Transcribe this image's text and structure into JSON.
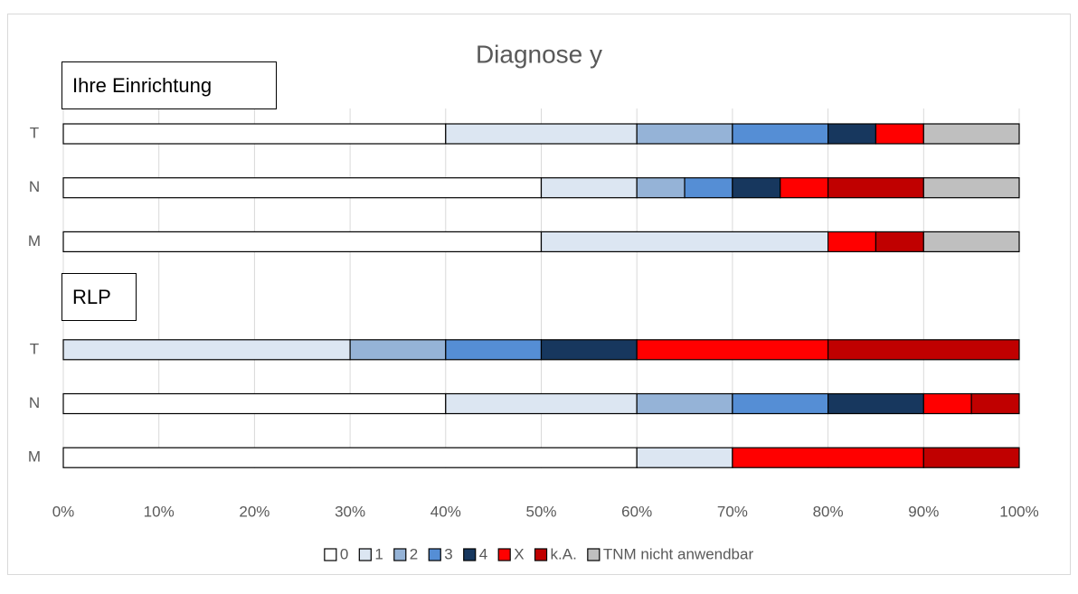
{
  "chart_data": {
    "type": "stacked_bar_horizontal",
    "title": "Diagnose y",
    "annotations": [
      "Ihre Einrichtung",
      "RLP"
    ],
    "categories": [
      "T",
      "N",
      "M",
      null,
      "T",
      "N",
      "M"
    ],
    "series": [
      {
        "name": "0",
        "color": "#ffffff",
        "values": [
          40,
          50,
          50,
          null,
          0,
          40,
          60
        ]
      },
      {
        "name": "1",
        "color": "#dce6f2",
        "values": [
          20,
          10,
          30,
          null,
          30,
          20,
          10
        ]
      },
      {
        "name": "2",
        "color": "#95b3d7",
        "values": [
          10,
          5,
          0,
          null,
          10,
          10,
          0
        ]
      },
      {
        "name": "3",
        "color": "#558ed5",
        "values": [
          10,
          5,
          0,
          null,
          10,
          10,
          0
        ]
      },
      {
        "name": "4",
        "color": "#17375e",
        "values": [
          5,
          5,
          0,
          null,
          10,
          10,
          0
        ]
      },
      {
        "name": "X",
        "color": "#ff0000",
        "values": [
          5,
          5,
          5,
          null,
          20,
          5,
          20
        ]
      },
      {
        "name": "k.A.",
        "color": "#c00000",
        "values": [
          0,
          10,
          5,
          null,
          20,
          5,
          10
        ]
      },
      {
        "name": "TNM nicht anwendbar",
        "color": "#bfbfbf",
        "values": [
          10,
          10,
          10,
          null,
          0,
          0,
          0
        ]
      }
    ],
    "xlim": [
      0,
      100
    ],
    "xticks": [
      {
        "value": 0,
        "label": "0%"
      },
      {
        "value": 10,
        "label": "10%"
      },
      {
        "value": 20,
        "label": "20%"
      },
      {
        "value": 30,
        "label": "30%"
      },
      {
        "value": 40,
        "label": "40%"
      },
      {
        "value": 50,
        "label": "50%"
      },
      {
        "value": 60,
        "label": "60%"
      },
      {
        "value": 70,
        "label": "70%"
      },
      {
        "value": 80,
        "label": "80%"
      },
      {
        "value": 90,
        "label": "90%"
      },
      {
        "value": 100,
        "label": "100%"
      }
    ],
    "grid": true,
    "legend": "bottom"
  }
}
